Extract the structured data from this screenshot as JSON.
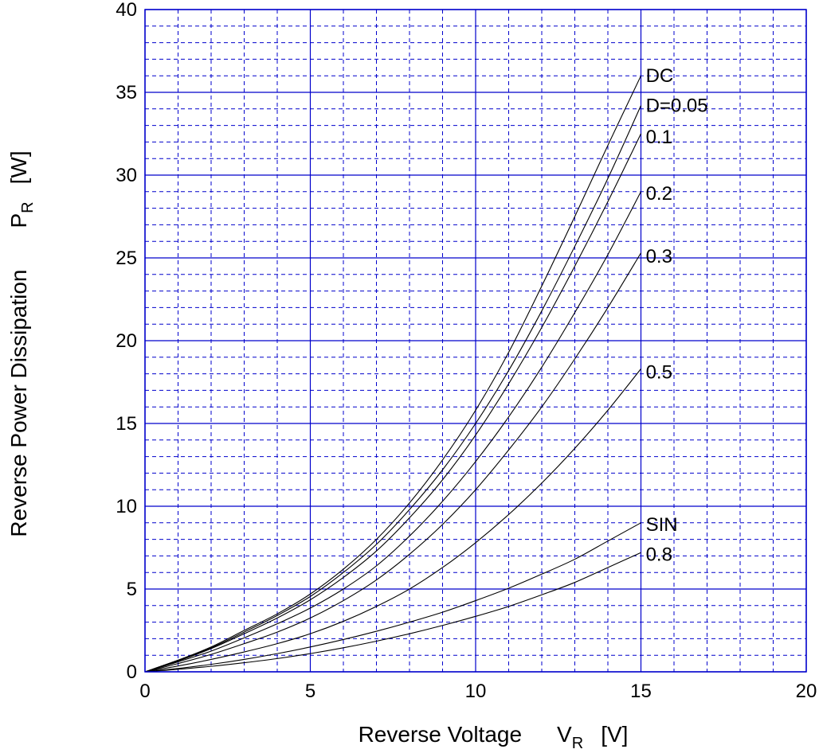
{
  "chart_data": {
    "type": "line",
    "xlabel": {
      "main": "Reverse Voltage",
      "symbol": "V",
      "subscript": "R",
      "unit": "[V]"
    },
    "ylabel": {
      "main": "Reverse Power Dissipation",
      "symbol": "P",
      "subscript": "R",
      "unit": "[W]"
    },
    "xlim": [
      0,
      20
    ],
    "ylim": [
      0,
      40
    ],
    "x_ticks": [
      0,
      5,
      10,
      15,
      20
    ],
    "y_ticks": [
      0,
      5,
      10,
      15,
      20,
      25,
      30,
      35,
      40
    ],
    "x_minor_step": 1,
    "y_minor_step": 1,
    "grid": true,
    "x": [
      0,
      1,
      2,
      3,
      4,
      5,
      6,
      7,
      8,
      9,
      10,
      11,
      12,
      13,
      14,
      15
    ],
    "series": [
      {
        "name": "DC",
        "values": [
          0,
          0.7,
          1.5,
          2.5,
          3.5,
          4.7,
          6.2,
          8.0,
          10.2,
          12.8,
          15.8,
          19.3,
          23.3,
          27.5,
          31.8,
          36.0
        ]
      },
      {
        "name": "D=0.05",
        "values": [
          0,
          0.7,
          1.45,
          2.4,
          3.4,
          4.55,
          6.0,
          7.7,
          9.8,
          12.2,
          15.0,
          18.2,
          21.8,
          25.7,
          29.8,
          34.2
        ]
      },
      {
        "name": "0.1",
        "values": [
          0,
          0.65,
          1.4,
          2.3,
          3.25,
          4.35,
          5.7,
          7.3,
          9.3,
          11.6,
          14.3,
          17.4,
          20.8,
          24.5,
          28.4,
          32.5
        ]
      },
      {
        "name": "0.2",
        "values": [
          0,
          0.6,
          1.25,
          2.05,
          2.9,
          3.85,
          5.0,
          6.4,
          8.2,
          10.3,
          12.7,
          15.4,
          18.4,
          21.7,
          25.2,
          29.0
        ]
      },
      {
        "name": "0.3",
        "values": [
          0,
          0.5,
          1.05,
          1.7,
          2.4,
          3.25,
          4.3,
          5.55,
          7.1,
          8.9,
          11.0,
          13.4,
          16.0,
          18.9,
          22.0,
          25.3
        ]
      },
      {
        "name": "0.5",
        "values": [
          0,
          0.35,
          0.75,
          1.2,
          1.7,
          2.3,
          3.05,
          3.95,
          5.0,
          6.3,
          7.8,
          9.5,
          11.4,
          13.5,
          15.8,
          18.3
        ]
      },
      {
        "name": "SIN",
        "values": [
          0,
          0.2,
          0.45,
          0.75,
          1.1,
          1.5,
          1.95,
          2.45,
          3.0,
          3.6,
          4.3,
          5.05,
          5.9,
          6.8,
          7.9,
          9.0
        ]
      },
      {
        "name": "0.8",
        "values": [
          0,
          0.15,
          0.33,
          0.55,
          0.8,
          1.1,
          1.45,
          1.85,
          2.3,
          2.8,
          3.35,
          3.95,
          4.65,
          5.4,
          6.3,
          7.2
        ]
      }
    ],
    "curve_labels": [
      {
        "text": "DC",
        "x": 15.05,
        "y": 36.0
      },
      {
        "text": "D=0.05",
        "x": 15.05,
        "y": 34.2
      },
      {
        "text": "0.1",
        "x": 15.05,
        "y": 32.3
      },
      {
        "text": "0.2",
        "x": 15.05,
        "y": 28.9
      },
      {
        "text": "0.3",
        "x": 15.05,
        "y": 25.1
      },
      {
        "text": "0.5",
        "x": 15.05,
        "y": 18.1
      },
      {
        "text": "SIN",
        "x": 15.05,
        "y": 8.9
      },
      {
        "text": "0.8",
        "x": 15.05,
        "y": 7.1
      }
    ]
  }
}
